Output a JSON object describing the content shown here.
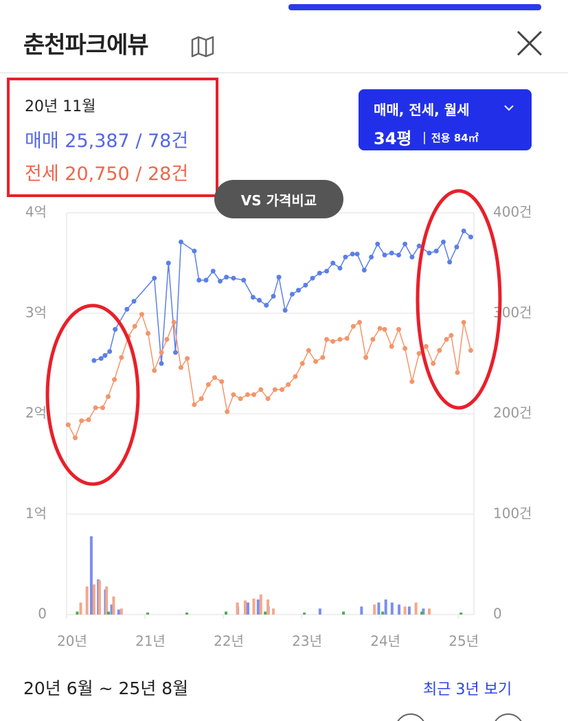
{
  "header": {
    "title": "춘천파크에뷰"
  },
  "filter": {
    "deal_types": "매매, 전세, 월세",
    "size": "34평",
    "area": "전용 84㎡"
  },
  "tooltip": {
    "date": "20년 11월",
    "sale": "매매 25,387 / 78건",
    "jeonse": "전세 20,750 / 28건"
  },
  "compare_button": "VS 가격비교",
  "chart_data": {
    "type": "line",
    "xlim": [
      20,
      25.2
    ],
    "xticks": [
      {
        "value": 20,
        "label": "20년"
      },
      {
        "value": 21,
        "label": "21년"
      },
      {
        "value": 22,
        "label": "22년"
      },
      {
        "value": 23,
        "label": "23년"
      },
      {
        "value": 24,
        "label": "24년"
      },
      {
        "value": 25,
        "label": "25년"
      }
    ],
    "ylim": [
      0,
      4
    ],
    "yticks": [
      0,
      {
        "value": 1,
        "label": "1억"
      },
      {
        "value": 2,
        "label": "2억"
      },
      {
        "value": 3,
        "label": "3억"
      },
      {
        "value": 4,
        "label": "4억"
      }
    ],
    "y2lim": [
      0,
      400
    ],
    "y2ticks": [
      0,
      {
        "value": 100,
        "label": "100건"
      },
      {
        "value": 200,
        "label": "200건"
      },
      {
        "value": 300,
        "label": "300건"
      },
      {
        "value": 400,
        "label": "400건"
      }
    ],
    "grid": true,
    "series": [
      {
        "type": "line",
        "color": "#5b7fe8",
        "x": [
          20.35,
          20.44,
          20.49,
          20.55,
          20.62,
          20.77,
          20.86,
          21.12,
          21.21,
          21.3,
          21.39,
          21.46,
          21.63,
          21.69,
          21.78,
          21.87,
          21.96,
          22.04,
          22.13,
          22.26,
          22.38,
          22.46,
          22.55,
          22.64,
          22.71,
          22.79,
          22.88,
          22.96,
          23.05,
          23.14,
          23.23,
          23.32,
          23.4,
          23.49,
          23.56,
          23.65,
          23.71,
          23.8,
          23.89,
          23.97,
          24.06,
          24.15,
          24.24,
          24.32,
          24.41,
          24.5,
          24.63,
          24.72,
          24.81,
          24.89,
          24.98,
          25.07,
          25.16
        ],
        "values": [
          2.53,
          2.55,
          2.58,
          2.62,
          2.84,
          3.04,
          3.12,
          3.35,
          2.5,
          3.5,
          2.61,
          3.71,
          3.62,
          3.33,
          3.33,
          3.42,
          3.32,
          3.36,
          3.35,
          3.33,
          3.16,
          3.13,
          3.08,
          3.17,
          3.36,
          3.03,
          3.19,
          3.23,
          3.28,
          3.35,
          3.4,
          3.42,
          3.5,
          3.45,
          3.56,
          3.59,
          3.59,
          3.43,
          3.56,
          3.69,
          3.58,
          3.6,
          3.58,
          3.69,
          3.56,
          3.67,
          3.6,
          3.62,
          3.71,
          3.51,
          3.66,
          3.82,
          3.76
        ]
      },
      {
        "type": "line",
        "color": "#f4956a",
        "x": [
          20.02,
          20.11,
          20.19,
          20.28,
          20.37,
          20.46,
          20.53,
          20.61,
          20.7,
          20.79,
          20.87,
          20.96,
          21.04,
          21.12,
          21.21,
          21.28,
          21.37,
          21.46,
          21.54,
          21.63,
          21.72,
          21.81,
          21.89,
          21.98,
          22.05,
          22.13,
          22.22,
          22.31,
          22.39,
          22.48,
          22.57,
          22.66,
          22.75,
          22.83,
          22.92,
          23.01,
          23.09,
          23.18,
          23.27,
          23.32,
          23.4,
          23.49,
          23.58,
          23.66,
          23.74,
          23.82,
          23.91,
          24.0,
          24.06,
          24.15,
          24.24,
          24.32,
          24.41,
          24.5,
          24.59,
          24.68,
          24.76,
          24.85,
          24.91,
          24.99,
          25.07,
          25.16
        ],
        "values": [
          1.89,
          1.76,
          1.93,
          1.94,
          2.06,
          2.06,
          2.17,
          2.34,
          2.56,
          2.77,
          2.87,
          2.99,
          2.8,
          2.43,
          2.61,
          2.74,
          2.91,
          2.46,
          2.55,
          2.09,
          2.15,
          2.29,
          2.36,
          2.32,
          2.02,
          2.19,
          2.15,
          2.19,
          2.19,
          2.24,
          2.15,
          2.24,
          2.24,
          2.29,
          2.37,
          2.5,
          2.63,
          2.52,
          2.56,
          2.74,
          2.72,
          2.74,
          2.75,
          2.87,
          2.91,
          2.56,
          2.74,
          2.85,
          2.84,
          2.67,
          2.84,
          2.65,
          2.32,
          2.6,
          2.67,
          2.5,
          2.63,
          2.74,
          2.78,
          2.41,
          2.91,
          2.63
        ]
      },
      {
        "type": "bar",
        "axis": "y2",
        "color": "#7b8ff0",
        "x": [
          20.35,
          20.44,
          20.53,
          20.61,
          20.7,
          22.22,
          22.35,
          22.48,
          22.61,
          23.27,
          23.8,
          24.02,
          24.11,
          24.19,
          24.28,
          24.41,
          24.59
        ],
        "values": [
          78,
          35,
          25,
          10,
          5,
          8,
          12,
          15,
          8,
          6,
          8,
          12,
          15,
          12,
          10,
          8,
          6
        ]
      },
      {
        "type": "bar",
        "axis": "y2",
        "color": "#f4a88a",
        "x": [
          20.18,
          20.26,
          20.35,
          20.42,
          20.51,
          20.6,
          20.7,
          22.18,
          22.28,
          22.39,
          22.48,
          22.57,
          22.64,
          23.93,
          24.32,
          24.46,
          24.63
        ],
        "values": [
          12,
          28,
          30,
          34,
          28,
          18,
          6,
          12,
          14,
          16,
          20,
          15,
          6,
          10,
          8,
          12,
          6
        ]
      },
      {
        "type": "bar",
        "axis": "y2",
        "color": "#4caf50",
        "x": [
          20.1,
          20.5,
          21.0,
          21.5,
          22.0,
          22.5,
          23.0,
          23.5,
          24.0,
          24.5,
          25.0
        ],
        "values": [
          3,
          3,
          2,
          2,
          3,
          3,
          2,
          3,
          3,
          3,
          2
        ]
      }
    ]
  },
  "footer": {
    "period": "20년 6월 ~ 25년 8월",
    "recent_link": "최근 3년 보기"
  }
}
